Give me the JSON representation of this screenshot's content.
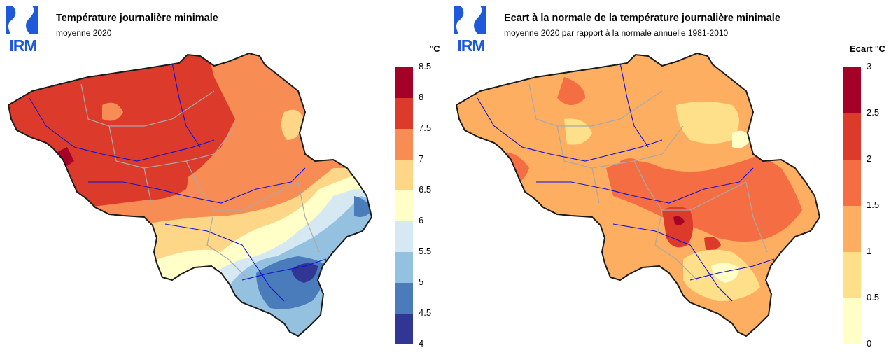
{
  "logo": {
    "text": "IRM",
    "color": "#1d59d8"
  },
  "left_map": {
    "title": "Température journalière minimale",
    "subtitle": "moyenne 2020",
    "unit": "°C",
    "legend": {
      "ticks": [
        "8.5",
        "8",
        "7.5",
        "7",
        "6.5",
        "6",
        "5.5",
        "5",
        "4.5",
        "4"
      ],
      "colors_top_to_bottom": [
        "#a50026",
        "#dc3b2c",
        "#f78d55",
        "#fdd687",
        "#ffffc7",
        "#d6e9f2",
        "#93c1df",
        "#4a7cbb",
        "#313695"
      ]
    }
  },
  "right_map": {
    "title": "Ecart à la normale de la température journalière minimale",
    "subtitle": "moyenne 2020 par rapport à la normale annuelle 1981-2010",
    "unit": "Ecart °C",
    "legend": {
      "ticks": [
        "3",
        "2.5",
        "2",
        "1.5",
        "1",
        "0.5",
        "0"
      ],
      "colors_top_to_bottom": [
        "#a50026",
        "#dc3b2c",
        "#f46d43",
        "#fdae61",
        "#fee08b",
        "#ffffc7"
      ]
    }
  }
}
